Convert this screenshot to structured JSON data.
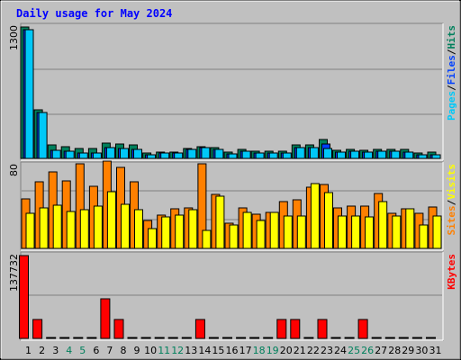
{
  "title": "Daily usage for May 2024",
  "colors": {
    "background": "#c0c0c0",
    "title": "#0000ff",
    "hits": "#00805c",
    "files": "#0040ff",
    "pages": "#00c8f8",
    "visits": "#ff8000",
    "sites": "#ffff00",
    "kbytes": "#ff0000",
    "weekend_day_label": "#00805c",
    "day_label": "#000000"
  },
  "chart_data": [
    {
      "type": "bar",
      "panel": "top",
      "ylabel_max": "1300",
      "ylim": [
        0,
        1300
      ],
      "right_labels": [
        "Pages",
        "/",
        "Files",
        "/",
        "Hits"
      ],
      "categories": [
        "1",
        "2",
        "3",
        "4",
        "5",
        "6",
        "7",
        "8",
        "9",
        "10",
        "11",
        "12",
        "13",
        "14",
        "15",
        "16",
        "17",
        "18",
        "19",
        "20",
        "21",
        "22",
        "23",
        "24",
        "25",
        "26",
        "27",
        "28",
        "29",
        "30",
        "31"
      ],
      "series": [
        {
          "name": "Hits",
          "values": [
            1300,
            485,
            130,
            120,
            95,
            95,
            150,
            140,
            130,
            55,
            60,
            60,
            100,
            120,
            110,
            60,
            90,
            70,
            70,
            75,
            130,
            130,
            185,
            80,
            85,
            80,
            90,
            90,
            85,
            50,
            60
          ]
        },
        {
          "name": "Files",
          "values": [
            1270,
            455,
            80,
            75,
            55,
            55,
            110,
            100,
            85,
            35,
            55,
            55,
            85,
            105,
            90,
            45,
            75,
            55,
            50,
            55,
            105,
            110,
            140,
            65,
            70,
            65,
            70,
            70,
            65,
            40,
            40
          ]
        },
        {
          "name": "Pages",
          "values": [
            1270,
            455,
            80,
            75,
            55,
            55,
            110,
            100,
            85,
            35,
            55,
            55,
            85,
            105,
            90,
            45,
            75,
            55,
            50,
            55,
            105,
            110,
            100,
            65,
            70,
            65,
            70,
            70,
            65,
            40,
            40
          ]
        }
      ]
    },
    {
      "type": "bar",
      "panel": "middle",
      "ylabel_max": "80",
      "ylim": [
        0,
        80
      ],
      "right_labels": [
        "Sites",
        "/",
        "Visits"
      ],
      "categories": [
        "1",
        "2",
        "3",
        "4",
        "5",
        "6",
        "7",
        "8",
        "9",
        "10",
        "11",
        "12",
        "13",
        "14",
        "15",
        "16",
        "17",
        "18",
        "19",
        "20",
        "21",
        "22",
        "23",
        "24",
        "25",
        "26",
        "27",
        "28",
        "29",
        "30",
        "31"
      ],
      "series": [
        {
          "name": "Visits",
          "values": [
            48,
            64,
            74,
            65,
            82,
            60,
            84,
            78,
            64,
            27,
            32,
            38,
            39,
            82,
            52,
            24,
            39,
            33,
            35,
            45,
            47,
            59,
            62,
            39,
            41,
            41,
            53,
            34,
            38,
            34,
            40
          ]
        },
        {
          "name": "Sites",
          "values": [
            34,
            39,
            42,
            36,
            37,
            41,
            55,
            43,
            37,
            19,
            30,
            32,
            37,
            17,
            50,
            23,
            35,
            27,
            35,
            31,
            31,
            63,
            54,
            31,
            31,
            30,
            45,
            31,
            38,
            23,
            31
          ]
        }
      ]
    },
    {
      "type": "bar",
      "panel": "bottom",
      "ylabel_max": "137732",
      "ylim": [
        0,
        137732
      ],
      "right_labels": [
        "KBytes"
      ],
      "categories": [
        "1",
        "2",
        "3",
        "4",
        "5",
        "6",
        "7",
        "8",
        "9",
        "10",
        "11",
        "12",
        "13",
        "14",
        "15",
        "16",
        "17",
        "18",
        "19",
        "20",
        "21",
        "22",
        "23",
        "24",
        "25",
        "26",
        "27",
        "28",
        "29",
        "30",
        "31"
      ],
      "series": [
        {
          "name": "KBytes",
          "values": [
            137732,
            32000,
            0,
            0,
            0,
            0,
            66000,
            32000,
            0,
            0,
            0,
            0,
            0,
            32000,
            0,
            0,
            0,
            0,
            0,
            32000,
            32000,
            0,
            32000,
            0,
            0,
            32000,
            0,
            0,
            0,
            0,
            0
          ]
        }
      ]
    }
  ],
  "x_day_labels": [
    "1",
    "2",
    "3",
    "4",
    "5",
    "6",
    "7",
    "8",
    "9",
    "10",
    "11",
    "12",
    "13",
    "14",
    "15",
    "16",
    "17",
    "18",
    "19",
    "20",
    "21",
    "22",
    "23",
    "24",
    "25",
    "26",
    "27",
    "28",
    "29",
    "30",
    "31"
  ],
  "weekend_days": [
    4,
    5,
    11,
    12,
    18,
    19,
    25,
    26
  ]
}
